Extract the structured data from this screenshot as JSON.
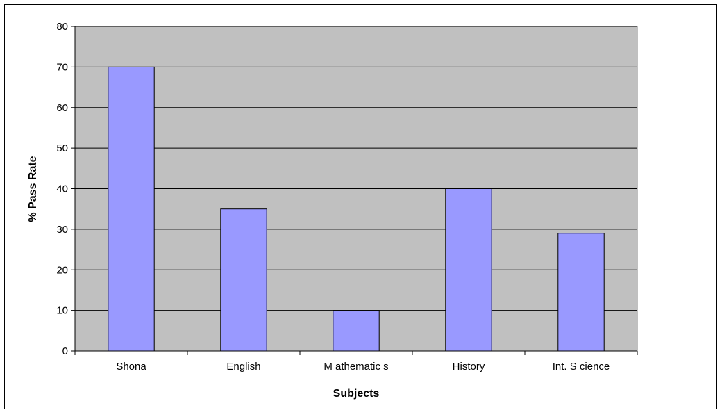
{
  "chart_data": {
    "type": "bar",
    "categories": [
      "Shona",
      "English",
      "M athematic s",
      "History",
      "Int. S cience"
    ],
    "values": [
      70,
      35,
      10,
      40,
      29
    ],
    "xlabel": "Subjects",
    "ylabel": "% Pass Rate",
    "ylim": [
      0,
      80
    ],
    "yticks": [
      "0",
      "10",
      "20",
      "30",
      "40",
      "50",
      "60",
      "70",
      "80"
    ],
    "grid": true,
    "legend": false,
    "colors": {
      "bar": "#9999ff",
      "plot_area": "#c0c0c0",
      "gridline": "#000000"
    }
  }
}
